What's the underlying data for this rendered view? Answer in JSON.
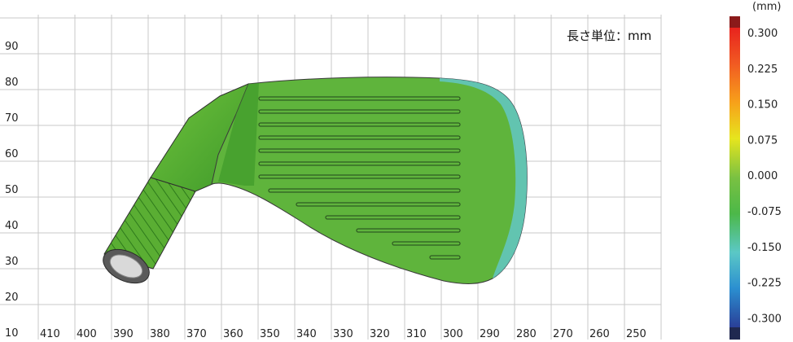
{
  "unit_label": "長さ単位：mm",
  "colorbar": {
    "unit": "(mm)",
    "ticks": [
      "0.300",
      "0.225",
      "0.150",
      "0.075",
      "0.000",
      "-0.075",
      "-0.150",
      "-0.225",
      "-0.300"
    ]
  },
  "x_axis_labels": [
    "410",
    "400",
    "390",
    "380",
    "370",
    "360",
    "350",
    "340",
    "330",
    "320",
    "310",
    "300",
    "290",
    "280",
    "270",
    "260",
    "250"
  ],
  "y_axis_labels": [
    "90",
    "80",
    "70",
    "60",
    "50",
    "40",
    "30",
    "20",
    "10"
  ],
  "colors": {
    "head_main": "#5fb43c",
    "head_dark": "#3f9a2a",
    "head_edge_cyan": "#63c7c4",
    "grid": "#c8c8c8"
  }
}
